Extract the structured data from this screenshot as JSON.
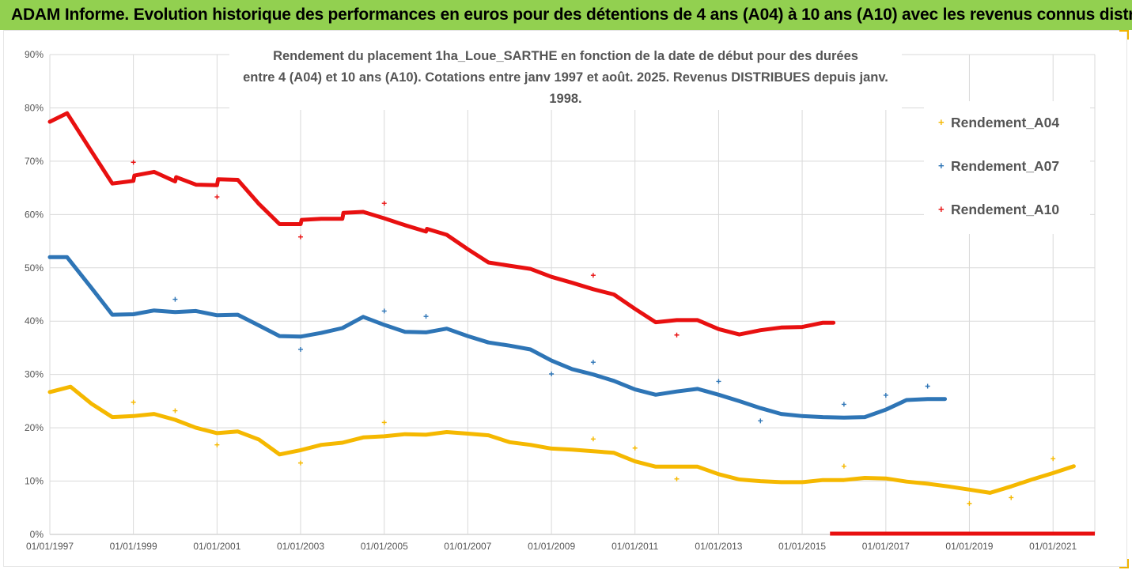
{
  "header": {
    "title": "ADAM Informe. Evolution historique des performances en euros pour des détentions de 4 ans (A04) à 10 ans (A10) avec les revenus connus distribués"
  },
  "chart_data": {
    "type": "scatter",
    "title_line1": "Rendement du placement 1ha_Loue_SARTHE en fonction de la date de début pour des durées",
    "title_line2": "entre 4 (A04) et 10 ans (A10). Cotations entre janv 1997 et août. 2025. Revenus DISTRIBUES depuis janv. 1998.",
    "xlabel": "",
    "ylabel": "",
    "x_ticks": [
      "01/01/1997",
      "01/01/1999",
      "01/01/2001",
      "01/01/2003",
      "01/01/2005",
      "01/01/2007",
      "01/01/2009",
      "01/01/2011",
      "01/01/2013",
      "01/01/2015",
      "01/01/2017",
      "01/01/2019",
      "01/01/2021"
    ],
    "xlim": [
      "1997-01-01",
      "2022-01-01"
    ],
    "y_ticks": [
      "0%",
      "10%",
      "20%",
      "30%",
      "40%",
      "50%",
      "60%",
      "70%",
      "80%",
      "90%"
    ],
    "ylim": [
      0,
      90
    ],
    "grid": true,
    "legend_position": "top-right",
    "series": [
      {
        "name": "Rendement_A04",
        "color": "#f5b800",
        "points": [
          [
            "1997-01-01",
            26.7
          ],
          [
            "1997-07-01",
            27.7
          ],
          [
            "1998-01-01",
            24.5
          ],
          [
            "1998-07-01",
            22.0
          ],
          [
            "1999-01-01",
            22.2
          ],
          [
            "1999-07-01",
            22.6
          ],
          [
            "2000-01-01",
            21.5
          ],
          [
            "2000-07-01",
            20.0
          ],
          [
            "2001-01-01",
            19.0
          ],
          [
            "2001-07-01",
            19.3
          ],
          [
            "2002-01-01",
            17.8
          ],
          [
            "2002-07-01",
            15.0
          ],
          [
            "2003-01-01",
            15.8
          ],
          [
            "2003-07-01",
            16.8
          ],
          [
            "2004-01-01",
            17.2
          ],
          [
            "2004-07-01",
            18.2
          ],
          [
            "2005-01-01",
            18.4
          ],
          [
            "2005-07-01",
            18.8
          ],
          [
            "2006-01-01",
            18.7
          ],
          [
            "2006-07-01",
            19.2
          ],
          [
            "2007-01-01",
            18.9
          ],
          [
            "2007-07-01",
            18.6
          ],
          [
            "2008-01-01",
            17.3
          ],
          [
            "2008-07-01",
            16.8
          ],
          [
            "2009-01-01",
            16.1
          ],
          [
            "2009-07-01",
            15.9
          ],
          [
            "2010-01-01",
            15.6
          ],
          [
            "2010-07-01",
            15.3
          ],
          [
            "2011-01-01",
            13.7
          ],
          [
            "2011-07-01",
            12.7
          ],
          [
            "2012-01-01",
            12.7
          ],
          [
            "2012-07-01",
            12.7
          ],
          [
            "2013-01-01",
            11.3
          ],
          [
            "2013-07-01",
            10.3
          ],
          [
            "2014-01-01",
            10.0
          ],
          [
            "2014-07-01",
            9.8
          ],
          [
            "2015-01-01",
            9.8
          ],
          [
            "2015-07-01",
            10.2
          ],
          [
            "2016-01-01",
            10.2
          ],
          [
            "2016-07-01",
            10.6
          ],
          [
            "2017-01-01",
            10.5
          ],
          [
            "2017-07-01",
            9.9
          ],
          [
            "2018-01-01",
            9.5
          ],
          [
            "2018-07-01",
            9.0
          ],
          [
            "2019-01-01",
            8.4
          ],
          [
            "2019-07-01",
            7.8
          ],
          [
            "2020-01-01",
            9.0
          ],
          [
            "2020-07-01",
            10.3
          ],
          [
            "2021-01-01",
            11.5
          ],
          [
            "2021-07-01",
            12.8
          ]
        ],
        "outliers": [
          [
            "1999-01-01",
            24.8
          ],
          [
            "2000-01-01",
            23.2
          ],
          [
            "2001-01-01",
            16.8
          ],
          [
            "2003-01-01",
            13.4
          ],
          [
            "2005-01-01",
            21.0
          ],
          [
            "2010-01-01",
            17.9
          ],
          [
            "2011-01-01",
            16.2
          ],
          [
            "2012-01-01",
            10.4
          ],
          [
            "2016-01-01",
            12.8
          ],
          [
            "2019-01-01",
            5.8
          ],
          [
            "2020-01-01",
            6.9
          ],
          [
            "2021-01-01",
            14.2
          ]
        ]
      },
      {
        "name": "Rendement_A07",
        "color": "#2e75b6",
        "points": [
          [
            "1997-01-01",
            52.0
          ],
          [
            "1997-06-01",
            52.0
          ],
          [
            "1998-01-01",
            46.2
          ],
          [
            "1998-07-01",
            41.2
          ],
          [
            "1999-01-01",
            41.3
          ],
          [
            "1999-07-01",
            42.0
          ],
          [
            "2000-01-01",
            41.7
          ],
          [
            "2000-07-01",
            41.9
          ],
          [
            "2001-01-01",
            41.1
          ],
          [
            "2001-07-01",
            41.2
          ],
          [
            "2002-01-01",
            39.2
          ],
          [
            "2002-07-01",
            37.2
          ],
          [
            "2003-01-01",
            37.1
          ],
          [
            "2003-07-01",
            37.8
          ],
          [
            "2004-01-01",
            38.7
          ],
          [
            "2004-07-01",
            40.8
          ],
          [
            "2005-01-01",
            39.3
          ],
          [
            "2005-07-01",
            38.0
          ],
          [
            "2006-01-01",
            37.9
          ],
          [
            "2006-07-01",
            38.6
          ],
          [
            "2007-01-01",
            37.2
          ],
          [
            "2007-07-01",
            36.0
          ],
          [
            "2008-01-01",
            35.4
          ],
          [
            "2008-07-01",
            34.7
          ],
          [
            "2009-01-01",
            32.6
          ],
          [
            "2009-07-01",
            31.0
          ],
          [
            "2010-01-01",
            30.0
          ],
          [
            "2010-07-01",
            28.8
          ],
          [
            "2011-01-01",
            27.2
          ],
          [
            "2011-07-01",
            26.2
          ],
          [
            "2012-01-01",
            26.8
          ],
          [
            "2012-07-01",
            27.3
          ],
          [
            "2013-01-01",
            26.2
          ],
          [
            "2013-07-01",
            25.0
          ],
          [
            "2014-01-01",
            23.7
          ],
          [
            "2014-07-01",
            22.6
          ],
          [
            "2015-01-01",
            22.2
          ],
          [
            "2015-07-01",
            22.0
          ],
          [
            "2016-01-01",
            21.9
          ],
          [
            "2016-07-01",
            22.0
          ],
          [
            "2017-01-01",
            23.4
          ],
          [
            "2017-07-01",
            25.2
          ],
          [
            "2018-01-01",
            25.4
          ],
          [
            "2018-06-01",
            25.4
          ]
        ],
        "outliers": [
          [
            "2000-01-01",
            44.1
          ],
          [
            "2003-01-01",
            34.7
          ],
          [
            "2005-01-01",
            41.9
          ],
          [
            "2006-01-01",
            40.9
          ],
          [
            "2009-01-01",
            30.1
          ],
          [
            "2010-01-01",
            32.3
          ],
          [
            "2013-01-01",
            28.7
          ],
          [
            "2014-01-01",
            21.3
          ],
          [
            "2016-01-01",
            24.4
          ],
          [
            "2017-01-01",
            26.1
          ],
          [
            "2018-01-01",
            27.8
          ]
        ]
      },
      {
        "name": "Rendement_A10",
        "color": "#e81010",
        "points": [
          [
            "1997-01-01",
            77.4
          ],
          [
            "1997-06-01",
            79.0
          ],
          [
            "1998-01-01",
            71.8
          ],
          [
            "1998-07-01",
            65.8
          ],
          [
            "1999-01-01",
            66.3
          ],
          [
            "1999-01-10",
            67.3
          ],
          [
            "1999-07-01",
            68.0
          ],
          [
            "2000-01-01",
            66.2
          ],
          [
            "2000-01-10",
            67.0
          ],
          [
            "2000-07-01",
            65.6
          ],
          [
            "2001-01-01",
            65.5
          ],
          [
            "2001-01-10",
            66.6
          ],
          [
            "2001-07-01",
            66.5
          ],
          [
            "2002-01-01",
            62.0
          ],
          [
            "2002-07-01",
            58.2
          ],
          [
            "2003-01-01",
            58.2
          ],
          [
            "2003-01-10",
            59.0
          ],
          [
            "2003-07-01",
            59.2
          ],
          [
            "2004-01-01",
            59.2
          ],
          [
            "2004-01-10",
            60.3
          ],
          [
            "2004-07-01",
            60.5
          ],
          [
            "2005-01-01",
            59.3
          ],
          [
            "2005-07-01",
            58.0
          ],
          [
            "2006-01-01",
            56.8
          ],
          [
            "2006-01-10",
            57.3
          ],
          [
            "2006-07-01",
            56.2
          ],
          [
            "2007-01-01",
            53.5
          ],
          [
            "2007-07-01",
            51.0
          ],
          [
            "2008-01-01",
            50.4
          ],
          [
            "2008-07-01",
            49.8
          ],
          [
            "2009-01-01",
            48.3
          ],
          [
            "2009-07-01",
            47.2
          ],
          [
            "2010-01-01",
            46.0
          ],
          [
            "2010-07-01",
            45.0
          ],
          [
            "2011-01-01",
            42.3
          ],
          [
            "2011-07-01",
            39.8
          ],
          [
            "2012-01-01",
            40.2
          ],
          [
            "2012-07-01",
            40.2
          ],
          [
            "2013-01-01",
            38.5
          ],
          [
            "2013-07-01",
            37.5
          ],
          [
            "2014-01-01",
            38.3
          ],
          [
            "2014-07-01",
            38.8
          ],
          [
            "2015-01-01",
            38.9
          ],
          [
            "2015-07-01",
            39.7
          ],
          [
            "2015-10-01",
            39.7
          ]
        ],
        "outliers": [
          [
            "1999-01-01",
            69.8
          ],
          [
            "2001-01-01",
            63.3
          ],
          [
            "2003-01-01",
            55.8
          ],
          [
            "2005-01-01",
            62.1
          ],
          [
            "2010-01-01",
            48.6
          ],
          [
            "2012-01-01",
            37.4
          ]
        ],
        "zero_segment": [
          [
            "2015-09-01",
            0
          ],
          [
            "2022-01-01",
            0
          ]
        ]
      }
    ]
  }
}
